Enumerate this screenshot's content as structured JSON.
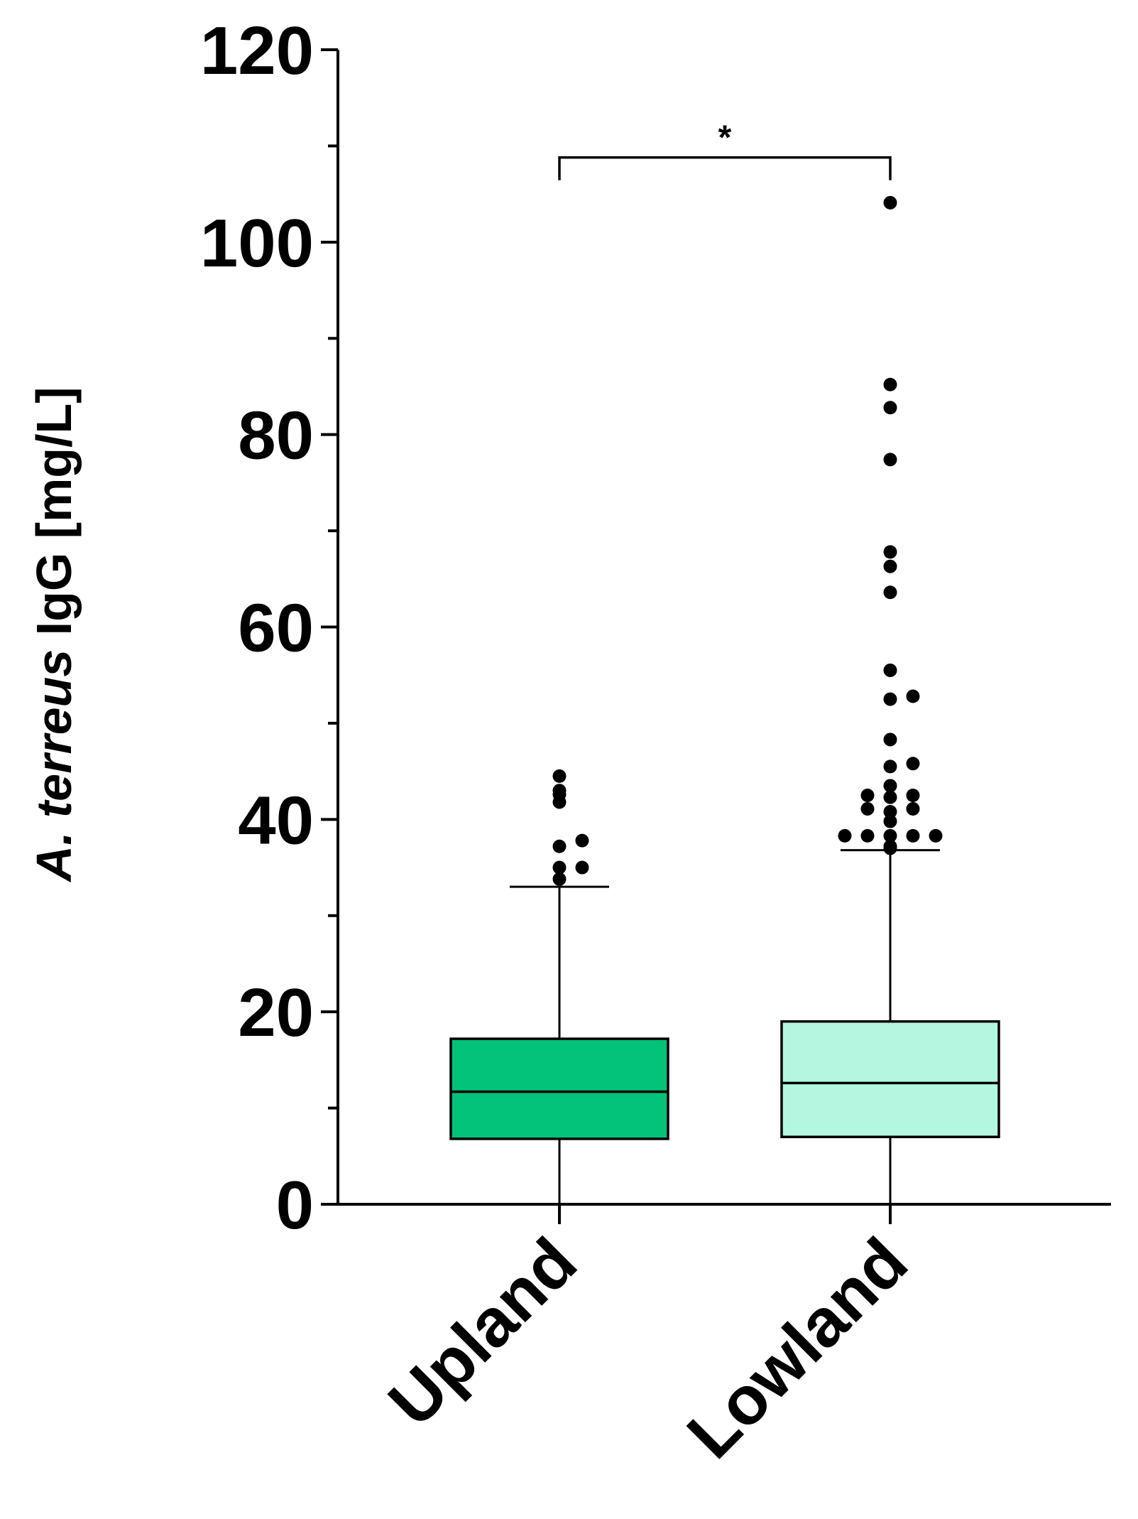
{
  "chart_data": {
    "type": "box",
    "ylabel_parts": [
      {
        "text": "A. terreus",
        "italic": true
      },
      {
        "text": " IgG [mg/L]",
        "italic": false
      }
    ],
    "ylim": [
      0,
      120
    ],
    "yticks_major": [
      0,
      20,
      40,
      60,
      80,
      100,
      120
    ],
    "ytick_minor_step": 10,
    "grid": false,
    "categories": [
      "Upland",
      "Lowland"
    ],
    "boxes": [
      {
        "category": "Upland",
        "color": "#03c27a",
        "whisker_low": 0,
        "q1": 6.8,
        "median": 11.7,
        "q3": 17.2,
        "whisker_high": 33,
        "outliers": [
          33.8,
          35,
          35,
          37.2,
          37.8,
          41.8,
          42.6,
          43,
          44.5
        ]
      },
      {
        "category": "Lowland",
        "color": "#b3f7e1",
        "whisker_low": 0,
        "q1": 7,
        "median": 12.6,
        "q3": 19,
        "whisker_high": 36.8,
        "outliers": [
          37,
          37.2,
          38.3,
          38.3,
          38.3,
          38.3,
          38.3,
          39.8,
          40.8,
          41.1,
          41.1,
          42.3,
          42.5,
          42.5,
          43.5,
          45.5,
          45.8,
          48.3,
          52.5,
          52.8,
          55.5,
          63.6,
          66.3,
          67.8,
          77.4,
          82.8,
          85.2,
          104.1
        ]
      }
    ],
    "significance": {
      "from": "Upland",
      "to": "Lowland",
      "y": 108.8,
      "label": "*"
    }
  }
}
